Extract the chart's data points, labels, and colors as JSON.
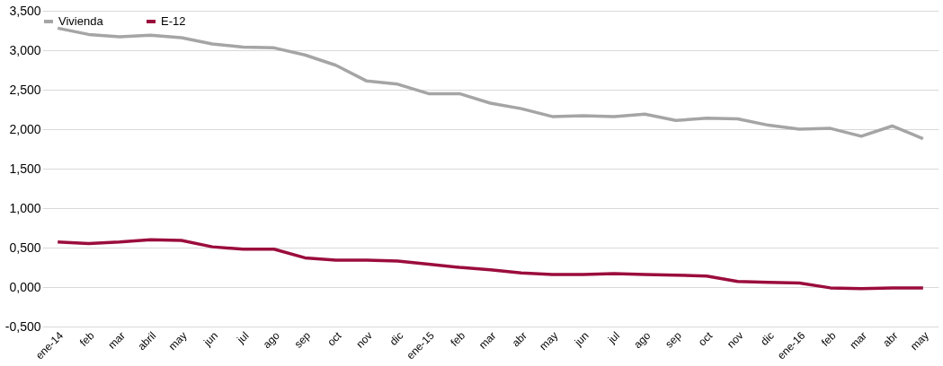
{
  "chart_data": {
    "type": "line",
    "categories": [
      "ene-14",
      "feb",
      "mar",
      "abril",
      "may",
      "jun",
      "jul",
      "ago",
      "sep",
      "oct",
      "nov",
      "dic",
      "ene-15",
      "feb",
      "mar",
      "abr",
      "may",
      "jun",
      "jul",
      "ago",
      "sep",
      "oct",
      "nov",
      "dic",
      "ene-16",
      "feb",
      "mar",
      "abr",
      "may"
    ],
    "series": [
      {
        "name": "Vivienda",
        "color": "#a5a5a5",
        "values": [
          3.28,
          3.2,
          3.17,
          3.19,
          3.16,
          3.08,
          3.04,
          3.03,
          2.94,
          2.81,
          2.61,
          2.57,
          2.45,
          2.45,
          2.33,
          2.26,
          2.16,
          2.17,
          2.16,
          2.19,
          2.11,
          2.14,
          2.13,
          2.05,
          2.0,
          2.01,
          1.91,
          2.04,
          1.88
        ]
      },
      {
        "name": "E-12",
        "color": "#9b0d3c",
        "values": [
          0.57,
          0.55,
          0.57,
          0.6,
          0.59,
          0.51,
          0.48,
          0.48,
          0.37,
          0.34,
          0.34,
          0.33,
          0.29,
          0.25,
          0.22,
          0.18,
          0.16,
          0.16,
          0.17,
          0.16,
          0.15,
          0.14,
          0.07,
          0.06,
          0.05,
          -0.01,
          -0.02,
          -0.01,
          -0.01
        ]
      }
    ],
    "ylim": [
      -0.5,
      3.5
    ],
    "yticks": [
      {
        "value": -0.5,
        "label": "-0,500"
      },
      {
        "value": 0,
        "label": "0,000"
      },
      {
        "value": 0.5,
        "label": "0,500"
      },
      {
        "value": 1,
        "label": "1,000"
      },
      {
        "value": 1.5,
        "label": "1,500"
      },
      {
        "value": 2,
        "label": "2,000"
      },
      {
        "value": 2.5,
        "label": "2,500"
      },
      {
        "value": 3,
        "label": "3,000"
      },
      {
        "value": 3.5,
        "label": "3,500"
      }
    ],
    "grid": "y",
    "legend": "top",
    "marker": "none",
    "line_style": "solid"
  }
}
